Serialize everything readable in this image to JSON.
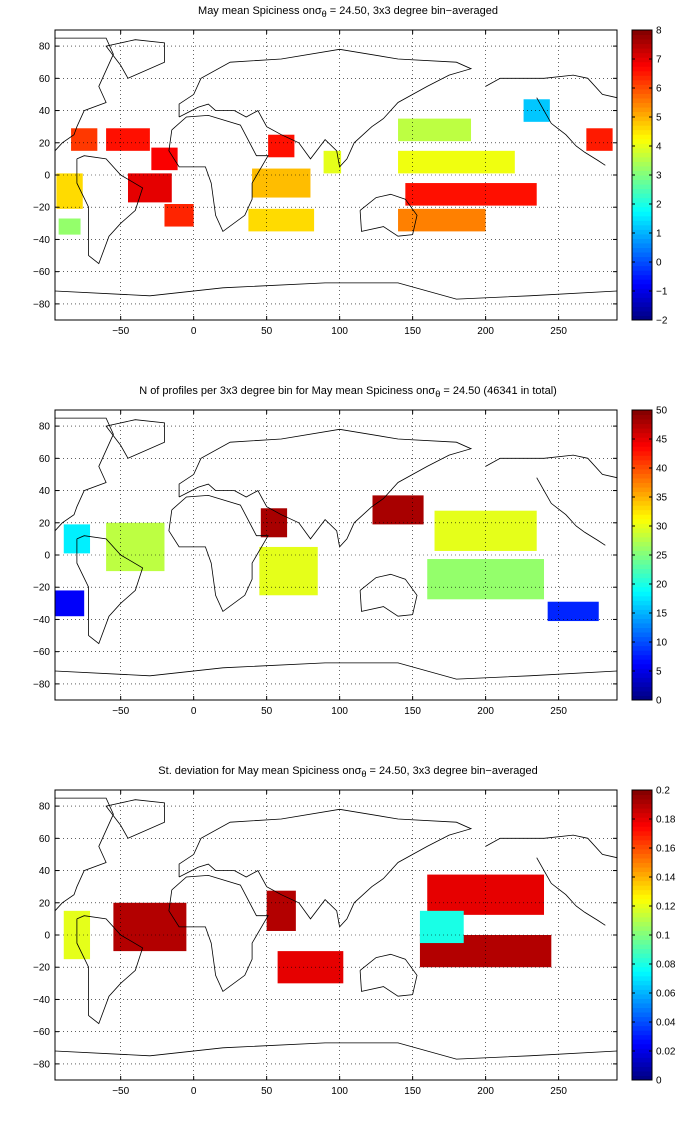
{
  "chart_data": [
    {
      "type": "heatmap",
      "title_prefix": "May mean Spiciness on",
      "title_symbol": "σ",
      "title_subscript": "θ",
      "title_suffix": " = 24.50, 3x3 degree bin−averaged",
      "xticks": [
        "−50",
        "0",
        "50",
        "100",
        "150",
        "200",
        "250"
      ],
      "xtick_values": [
        -50,
        0,
        50,
        100,
        150,
        200,
        250
      ],
      "yticks": [
        "80",
        "60",
        "40",
        "20",
        "0",
        "−20",
        "−40",
        "−60",
        "−80"
      ],
      "ytick_values": [
        80,
        60,
        40,
        20,
        0,
        -20,
        -40,
        -60,
        -80
      ],
      "xlim": [
        -95,
        290
      ],
      "ylim": [
        -90,
        90
      ],
      "grid": true,
      "colorbar_ticks": [
        "8",
        "7",
        "6",
        "5",
        "4",
        "3",
        "2",
        "1",
        "0",
        "−1",
        "−2"
      ],
      "colorbar_values": [
        8,
        7,
        6,
        5,
        4,
        3,
        2,
        1,
        0,
        -1,
        -2
      ],
      "clim": [
        -2,
        8
      ],
      "colormap": "jet",
      "cells": [
        {
          "lon": -75,
          "lat": 22,
          "w": 18,
          "h": 14,
          "value": 6.2
        },
        {
          "lon": -45,
          "lat": 22,
          "w": 30,
          "h": 14,
          "value": 6.6
        },
        {
          "lon": -20,
          "lat": 10,
          "w": 18,
          "h": 14,
          "value": 6.8
        },
        {
          "lon": -30,
          "lat": -8,
          "w": 30,
          "h": 18,
          "value": 7.0
        },
        {
          "lon": -10,
          "lat": -25,
          "w": 20,
          "h": 14,
          "value": 6.4
        },
        {
          "lon": -85,
          "lat": -10,
          "w": 18,
          "h": 22,
          "value": 4.6
        },
        {
          "lon": -85,
          "lat": -32,
          "w": 15,
          "h": 10,
          "value": 3.2
        },
        {
          "lon": 60,
          "lat": 18,
          "w": 18,
          "h": 14,
          "value": 6.6
        },
        {
          "lon": 60,
          "lat": -5,
          "w": 40,
          "h": 18,
          "value": 4.9
        },
        {
          "lon": 60,
          "lat": -28,
          "w": 45,
          "h": 14,
          "value": 4.6
        },
        {
          "lon": 95,
          "lat": 8,
          "w": 12,
          "h": 14,
          "value": 4.0
        },
        {
          "lon": 165,
          "lat": 28,
          "w": 50,
          "h": 14,
          "value": 3.6
        },
        {
          "lon": 180,
          "lat": 8,
          "w": 80,
          "h": 14,
          "value": 4.1
        },
        {
          "lon": 190,
          "lat": -12,
          "w": 90,
          "h": 14,
          "value": 6.6
        },
        {
          "lon": 170,
          "lat": -28,
          "w": 60,
          "h": 14,
          "value": 5.5
        },
        {
          "lon": 235,
          "lat": 40,
          "w": 18,
          "h": 14,
          "value": 1.2
        },
        {
          "lon": 278,
          "lat": 22,
          "w": 18,
          "h": 14,
          "value": 6.5
        }
      ]
    },
    {
      "type": "heatmap",
      "title_prefix": "N of profiles per 3x3 degree bin for May mean Spiciness on",
      "title_symbol": "σ",
      "title_subscript": "θ",
      "title_suffix": " = 24.50 (46341 in total)",
      "xticks": [
        "−50",
        "0",
        "50",
        "100",
        "150",
        "200",
        "250"
      ],
      "xtick_values": [
        -50,
        0,
        50,
        100,
        150,
        200,
        250
      ],
      "yticks": [
        "80",
        "60",
        "40",
        "20",
        "0",
        "−20",
        "−40",
        "−60",
        "−80"
      ],
      "ytick_values": [
        80,
        60,
        40,
        20,
        0,
        -20,
        -40,
        -60,
        -80
      ],
      "xlim": [
        -95,
        290
      ],
      "ylim": [
        -90,
        90
      ],
      "grid": true,
      "colorbar_ticks": [
        "50",
        "45",
        "40",
        "35",
        "30",
        "25",
        "20",
        "15",
        "10",
        "5",
        "0"
      ],
      "colorbar_values": [
        50,
        45,
        40,
        35,
        30,
        25,
        20,
        15,
        10,
        5,
        0
      ],
      "clim": [
        0,
        50
      ],
      "colormap": "jet",
      "cells": [
        {
          "lon": -80,
          "lat": 10,
          "w": 18,
          "h": 18,
          "value": 18
        },
        {
          "lon": -40,
          "lat": 5,
          "w": 40,
          "h": 30,
          "value": 28
        },
        {
          "lon": -85,
          "lat": -30,
          "w": 20,
          "h": 16,
          "value": 6
        },
        {
          "lon": 55,
          "lat": 20,
          "w": 18,
          "h": 18,
          "value": 48
        },
        {
          "lon": 65,
          "lat": -10,
          "w": 40,
          "h": 30,
          "value": 30
        },
        {
          "lon": 140,
          "lat": 28,
          "w": 35,
          "h": 18,
          "value": 48
        },
        {
          "lon": 200,
          "lat": 15,
          "w": 70,
          "h": 25,
          "value": 30
        },
        {
          "lon": 200,
          "lat": -15,
          "w": 80,
          "h": 25,
          "value": 26
        },
        {
          "lon": 260,
          "lat": -35,
          "w": 35,
          "h": 12,
          "value": 8
        }
      ]
    },
    {
      "type": "heatmap",
      "title_prefix": "St. deviation for May mean Spiciness on",
      "title_symbol": "σ",
      "title_subscript": "θ",
      "title_suffix": " = 24.50, 3x3 degree bin−averaged",
      "xticks": [
        "−50",
        "0",
        "50",
        "100",
        "150",
        "200",
        "250"
      ],
      "xtick_values": [
        -50,
        0,
        50,
        100,
        150,
        200,
        250
      ],
      "yticks": [
        "80",
        "60",
        "40",
        "20",
        "0",
        "−20",
        "−40",
        "−60",
        "−80"
      ],
      "ytick_values": [
        80,
        60,
        40,
        20,
        0,
        -20,
        -40,
        -60,
        -80
      ],
      "xlim": [
        -95,
        290
      ],
      "ylim": [
        -90,
        90
      ],
      "grid": true,
      "colorbar_ticks": [
        "0.2",
        "0.18",
        "0.16",
        "0.14",
        "0.12",
        "0.1",
        "0.08",
        "0.06",
        "0.04",
        "0.02",
        "0"
      ],
      "colorbar_values": [
        0.2,
        0.18,
        0.16,
        0.14,
        0.12,
        0.1,
        0.08,
        0.06,
        0.04,
        0.02,
        0
      ],
      "clim": [
        0,
        0.2
      ],
      "colormap": "jet",
      "cells": [
        {
          "lon": -30,
          "lat": 5,
          "w": 50,
          "h": 30,
          "value": 0.19
        },
        {
          "lon": -80,
          "lat": 0,
          "w": 18,
          "h": 30,
          "value": 0.12
        },
        {
          "lon": 60,
          "lat": 15,
          "w": 20,
          "h": 25,
          "value": 0.19
        },
        {
          "lon": 80,
          "lat": -20,
          "w": 45,
          "h": 20,
          "value": 0.18
        },
        {
          "lon": 200,
          "lat": 25,
          "w": 80,
          "h": 25,
          "value": 0.18
        },
        {
          "lon": 200,
          "lat": -10,
          "w": 90,
          "h": 20,
          "value": 0.19
        },
        {
          "lon": 170,
          "lat": 5,
          "w": 30,
          "h": 20,
          "value": 0.08
        }
      ]
    }
  ]
}
